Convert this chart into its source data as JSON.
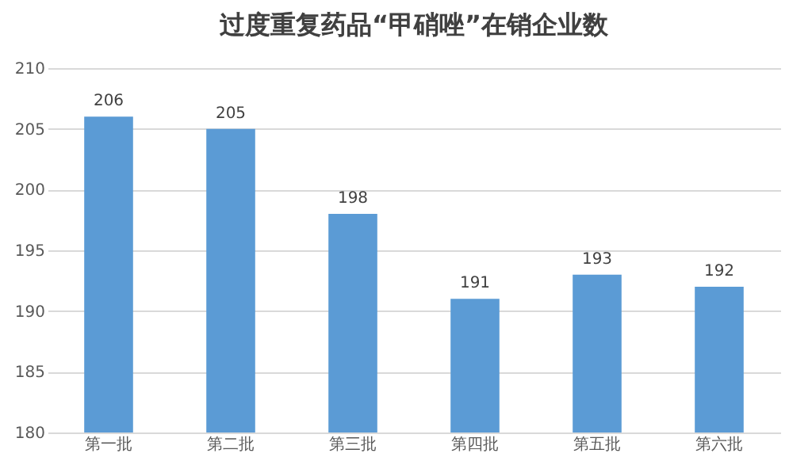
{
  "chart_data": {
    "type": "bar",
    "title": "过度重复药品“甲硝唑”在销企业数",
    "categories": [
      "第一批",
      "第二批",
      "第三批",
      "第四批",
      "第五批",
      "第六批"
    ],
    "values": [
      206,
      205,
      198,
      191,
      193,
      192
    ],
    "color": "#5b9bd5",
    "ylim": [
      180,
      210
    ],
    "yticks": [
      180,
      185,
      190,
      195,
      200,
      205,
      210
    ],
    "grid": "y",
    "data_labels": true
  }
}
